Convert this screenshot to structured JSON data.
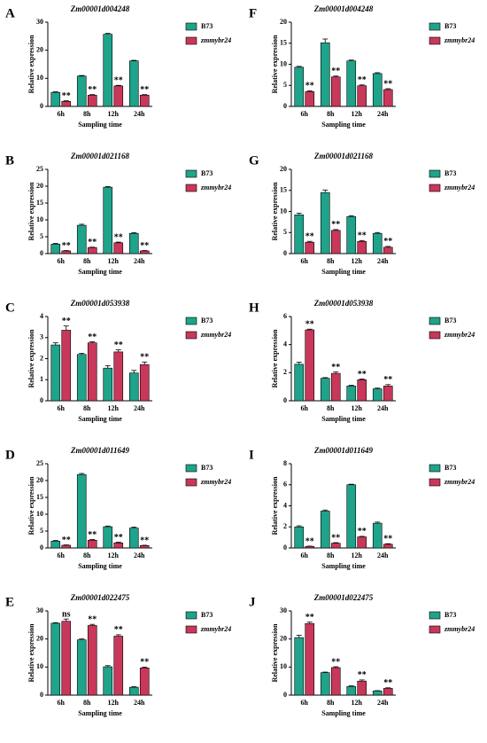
{
  "chart_data": [
    {
      "type": "bar",
      "panel": "A",
      "title": "Zm00001d004248",
      "xlabel": "Sampling time",
      "ylabel": "Relative expression",
      "categories": [
        "6h",
        "8h",
        "12h",
        "24h"
      ],
      "ylim": [
        0,
        30
      ],
      "yticks": [
        0,
        10,
        20,
        30
      ],
      "series": [
        {
          "name": "B73",
          "color": "#1fa38a",
          "values": [
            5,
            10.8,
            25.7,
            16.2
          ],
          "errors": [
            0.2,
            0.2,
            0.3,
            0.2
          ]
        },
        {
          "name": "zmmybr24",
          "color": "#c8385a",
          "values": [
            1.8,
            4,
            7.3,
            4
          ],
          "errors": [
            0.2,
            0.2,
            0.2,
            0.2
          ]
        }
      ],
      "annotations": [
        "**",
        "**",
        "**",
        "**"
      ]
    },
    {
      "type": "bar",
      "panel": "B",
      "title": "Zm00001d021168",
      "xlabel": "Sampling time",
      "ylabel": "Relative expression",
      "categories": [
        "6h",
        "8h",
        "12h",
        "24h"
      ],
      "ylim": [
        0,
        25
      ],
      "yticks": [
        0,
        5,
        10,
        15,
        20,
        25
      ],
      "series": [
        {
          "name": "B73",
          "color": "#1fa38a",
          "values": [
            2.8,
            8.4,
            19.7,
            6
          ],
          "errors": [
            0.2,
            0.3,
            0.2,
            0.2
          ]
        },
        {
          "name": "zmmybr24",
          "color": "#c8385a",
          "values": [
            0.8,
            1.8,
            3.2,
            0.8
          ],
          "errors": [
            0.1,
            0.1,
            0.2,
            0.1
          ]
        }
      ],
      "annotations": [
        "**",
        "**",
        "**",
        "**"
      ]
    },
    {
      "type": "bar",
      "panel": "C",
      "title": "Zm00001d053938",
      "xlabel": "Sampling time",
      "ylabel": "Relative expression",
      "categories": [
        "6h",
        "8h",
        "12h",
        "24h"
      ],
      "ylim": [
        0,
        4
      ],
      "yticks": [
        0,
        1,
        2,
        3,
        4
      ],
      "series": [
        {
          "name": "B73",
          "color": "#1fa38a",
          "values": [
            2.65,
            2.2,
            1.55,
            1.32
          ],
          "errors": [
            0.1,
            0.05,
            0.12,
            0.12
          ]
        },
        {
          "name": "zmmybr24",
          "color": "#c8385a",
          "values": [
            3.35,
            2.75,
            2.32,
            1.72
          ],
          "errors": [
            0.2,
            0.05,
            0.1,
            0.12
          ]
        }
      ],
      "annotations": [
        "**",
        "**",
        "**",
        "**"
      ]
    },
    {
      "type": "bar",
      "panel": "D",
      "title": "Zm00001d011649",
      "xlabel": "Sampling time",
      "ylabel": "Relative expression",
      "categories": [
        "6h",
        "8h",
        "12h",
        "24h"
      ],
      "ylim": [
        0,
        25
      ],
      "yticks": [
        0,
        5,
        10,
        15,
        20,
        25
      ],
      "series": [
        {
          "name": "B73",
          "color": "#1fa38a",
          "values": [
            2,
            21.8,
            6.3,
            5.9
          ],
          "errors": [
            0.2,
            0.3,
            0.2,
            0.3
          ]
        },
        {
          "name": "zmmybr24",
          "color": "#c8385a",
          "values": [
            0.8,
            2.3,
            1.5,
            0.7
          ],
          "errors": [
            0.1,
            0.2,
            0.2,
            0.1
          ]
        }
      ],
      "annotations": [
        "**",
        "**",
        "**",
        "**"
      ]
    },
    {
      "type": "bar",
      "panel": "E",
      "title": "Zm00001d022475",
      "xlabel": "Sampling time",
      "ylabel": "Relative expression",
      "categories": [
        "6h",
        "8h",
        "12h",
        "24h"
      ],
      "ylim": [
        0,
        30
      ],
      "yticks": [
        0,
        10,
        20,
        30
      ],
      "series": [
        {
          "name": "B73",
          "color": "#1fa38a",
          "values": [
            25.6,
            19.7,
            10.1,
            2.8
          ],
          "errors": [
            0.2,
            0.3,
            0.4,
            0.2
          ]
        },
        {
          "name": "zmmybr24",
          "color": "#c8385a",
          "values": [
            26.3,
            24.8,
            21,
            9.7
          ],
          "errors": [
            0.8,
            0.4,
            0.5,
            0.3
          ]
        }
      ],
      "annotations": [
        "ns",
        "**",
        "**",
        "**"
      ]
    },
    {
      "type": "bar",
      "panel": "F",
      "title": "Zm00001d004248",
      "xlabel": "Sampling time",
      "ylabel": "Relative expression",
      "categories": [
        "6h",
        "8h",
        "12h",
        "24h"
      ],
      "ylim": [
        0,
        20
      ],
      "yticks": [
        0,
        5,
        10,
        15,
        20
      ],
      "series": [
        {
          "name": "B73",
          "color": "#1fa38a",
          "values": [
            9.3,
            15.1,
            10.8,
            7.8
          ],
          "errors": [
            0.2,
            0.9,
            0.2,
            0.2
          ]
        },
        {
          "name": "zmmybr24",
          "color": "#c8385a",
          "values": [
            3.5,
            7,
            4.9,
            4
          ],
          "errors": [
            0.2,
            0.2,
            0.2,
            0.2
          ]
        }
      ],
      "annotations": [
        "**",
        "**",
        "**",
        "**"
      ]
    },
    {
      "type": "bar",
      "panel": "G",
      "title": "Zm00001d021168",
      "xlabel": "Sampling time",
      "ylabel": "Relative expression",
      "categories": [
        "6h",
        "8h",
        "12h",
        "24h"
      ],
      "ylim": [
        0,
        20
      ],
      "yticks": [
        0,
        5,
        10,
        15,
        20
      ],
      "series": [
        {
          "name": "B73",
          "color": "#1fa38a",
          "values": [
            9.2,
            14.5,
            8.8,
            4.8
          ],
          "errors": [
            0.4,
            0.6,
            0.2,
            0.2
          ]
        },
        {
          "name": "zmmybr24",
          "color": "#c8385a",
          "values": [
            2.7,
            5.5,
            2.9,
            1.5
          ],
          "errors": [
            0.2,
            0.2,
            0.2,
            0.2
          ]
        }
      ],
      "annotations": [
        "**",
        "**",
        "**",
        "**"
      ]
    },
    {
      "type": "bar",
      "panel": "H",
      "title": "Zm00001d053938",
      "xlabel": "Sampling time",
      "ylabel": "Relative expression",
      "categories": [
        "6h",
        "8h",
        "12h",
        "24h"
      ],
      "ylim": [
        0,
        6
      ],
      "yticks": [
        0,
        2,
        4,
        6
      ],
      "series": [
        {
          "name": "B73",
          "color": "#1fa38a",
          "values": [
            2.6,
            1.6,
            1.05,
            0.85
          ],
          "errors": [
            0.15,
            0.05,
            0.05,
            0.05
          ]
        },
        {
          "name": "zmmybr24",
          "color": "#c8385a",
          "values": [
            5.05,
            1.95,
            1.5,
            1.05
          ],
          "errors": [
            0.05,
            0.1,
            0.05,
            0.1
          ]
        }
      ],
      "annotations": [
        "**",
        "**",
        "**",
        "**"
      ]
    },
    {
      "type": "bar",
      "panel": "I",
      "title": "Zm00001d011649",
      "xlabel": "Sampling time",
      "ylabel": "Relative expression",
      "categories": [
        "6h",
        "8h",
        "12h",
        "24h"
      ],
      "ylim": [
        0,
        8
      ],
      "yticks": [
        0,
        2,
        4,
        6,
        8
      ],
      "series": [
        {
          "name": "B73",
          "color": "#1fa38a",
          "values": [
            2,
            3.5,
            6,
            2.35
          ],
          "errors": [
            0.1,
            0.1,
            0.05,
            0.1
          ]
        },
        {
          "name": "zmmybr24",
          "color": "#c8385a",
          "values": [
            0.15,
            0.45,
            1.05,
            0.35
          ],
          "errors": [
            0.02,
            0.05,
            0.05,
            0.05
          ]
        }
      ],
      "annotations": [
        "**",
        "**",
        "**",
        "**"
      ]
    },
    {
      "type": "bar",
      "panel": "J",
      "title": "Zm00001d022475",
      "xlabel": "Sampling time",
      "ylabel": "Relative expression",
      "categories": [
        "6h",
        "8h",
        "12h",
        "24h"
      ],
      "ylim": [
        0,
        30
      ],
      "yticks": [
        0,
        10,
        20,
        30
      ],
      "series": [
        {
          "name": "B73",
          "color": "#1fa38a",
          "values": [
            20.5,
            8,
            3.1,
            1.5
          ],
          "errors": [
            0.8,
            0.2,
            0.2,
            0.1
          ]
        },
        {
          "name": "zmmybr24",
          "color": "#c8385a",
          "values": [
            25.5,
            9.8,
            5,
            2.4
          ],
          "errors": [
            0.5,
            0.3,
            0.4,
            0.2
          ]
        }
      ],
      "annotations": [
        "**",
        "**",
        "**",
        "**"
      ]
    }
  ]
}
